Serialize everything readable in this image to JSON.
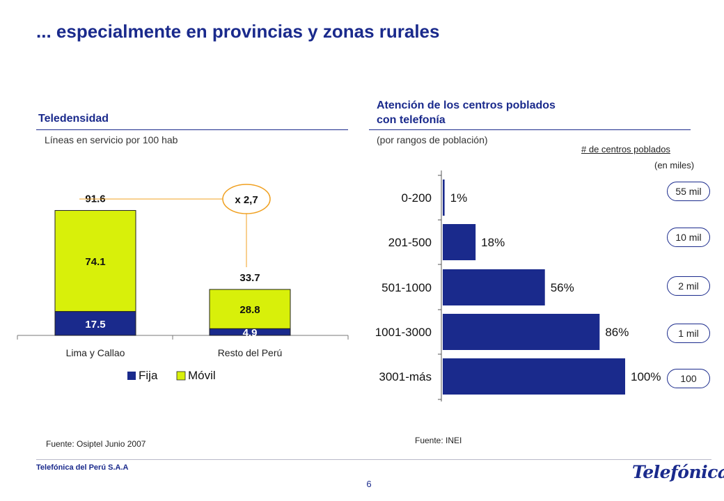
{
  "title": "... especialmente en provincias y zonas rurales",
  "left_panel": {
    "title": "Teledensidad",
    "subtitle": "Líneas en servicio por 100 hab",
    "source": "Fuente: Osiptel Junio 2007",
    "multiplier_label": "x 2,7"
  },
  "right_panel": {
    "title_line1": "Atención de los centros poblados",
    "title_line2": "con telefonía",
    "subtitle": "(por rangos de población)",
    "source": "Fuente: INEI",
    "side_title": "# de centros poblados",
    "side_subtitle": "(en miles)",
    "centros": [
      "55 mil",
      "10 mil",
      "2 mil",
      "1 mil",
      "100"
    ]
  },
  "footer": {
    "company": "Telefónica del Perú S.A.A",
    "page": "6",
    "logo": "Telefónica"
  },
  "colors": {
    "fija": "#1a2a8c",
    "movil": "#d8f00a",
    "accent_line": "#f0a020",
    "title": "#1a2a8c"
  },
  "chart_data": [
    {
      "type": "bar",
      "stacked": true,
      "categories": [
        "Lima y Callao",
        "Resto del Perú"
      ],
      "series": [
        {
          "name": "Fija",
          "values": [
            17.5,
            4.9
          ]
        },
        {
          "name": "Móvil",
          "values": [
            74.1,
            28.8
          ]
        }
      ],
      "totals": [
        91.6,
        33.7
      ],
      "total_labels": [
        "91.6",
        "33.7"
      ],
      "series_labels": [
        [
          "17.5",
          "4.9"
        ],
        [
          "74.1",
          "28.8"
        ]
      ],
      "legend": "bottom"
    },
    {
      "type": "bar",
      "orientation": "horizontal",
      "categories": [
        "0-200",
        "201-500",
        "501-1000",
        "1001-3000",
        "3001-más"
      ],
      "values": [
        1,
        18,
        56,
        86,
        100
      ],
      "value_labels": [
        "1%",
        "18%",
        "56%",
        "86%",
        "100%"
      ],
      "xlim": [
        0,
        100
      ]
    }
  ]
}
